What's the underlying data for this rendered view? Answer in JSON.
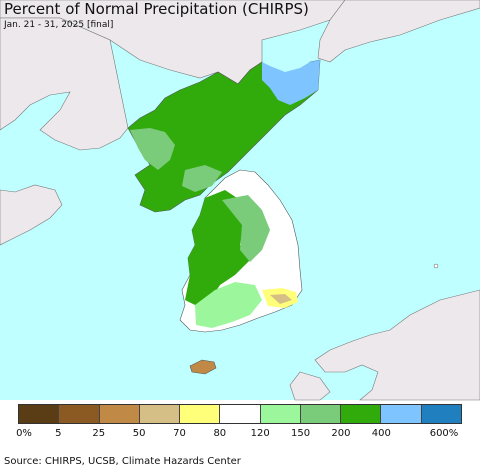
{
  "map": {
    "title": "Percent of Normal Precipitation (CHIRPS)",
    "subtitle": "Jan. 21 - 31, 2025 [final]",
    "source": "Source: CHIRPS, UCSB, Climate Hazards Center",
    "colors": {
      "sea": "#bfffff",
      "foreign_land": "#ece8ec",
      "border": "#777777"
    },
    "legend": {
      "swatches": [
        {
          "color": "#5a3d14"
        },
        {
          "color": "#8b5a22"
        },
        {
          "color": "#c08a46"
        },
        {
          "color": "#d6bf86"
        },
        {
          "color": "#ffff7a"
        },
        {
          "color": "#ffffff"
        },
        {
          "color": "#9cf79c"
        },
        {
          "color": "#7acb7a"
        },
        {
          "color": "#31ab0c"
        },
        {
          "color": "#7ec4ff"
        },
        {
          "color": "#1f7fbf"
        }
      ],
      "labels": [
        "0%",
        "5",
        "25",
        "50",
        "70",
        "80",
        "120",
        "150",
        "200",
        "400",
        "600%"
      ]
    }
  }
}
